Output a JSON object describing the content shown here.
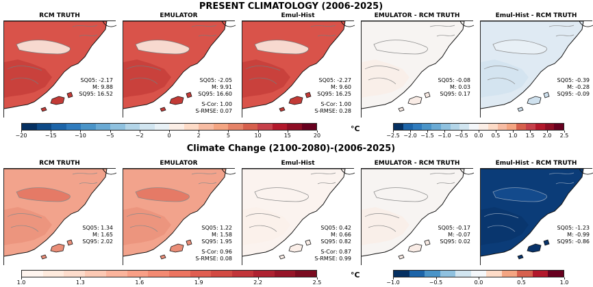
{
  "top": {
    "title": "PRESENT CLIMATOLOGY (2006-2025)",
    "panels": [
      {
        "title": "RCM TRUTH",
        "stats": [
          "SQ05: -2.17",
          "M: 9.88",
          "SQ95: 16.52"
        ],
        "extra": [],
        "fill": "warm"
      },
      {
        "title": "EMULATOR",
        "stats": [
          "SQ05: -2.05",
          "M: 9.91",
          "SQ95: 16.60"
        ],
        "extra": [
          "S-Cor: 1.00",
          "S-RMSE: 0.07"
        ],
        "fill": "warm"
      },
      {
        "title": "Emul-Hist",
        "stats": [
          "SQ05: -2.27",
          "M: 9.60",
          "SQ95: 16.25"
        ],
        "extra": [
          "S-Cor: 1.00",
          "S-RMSE: 0.28"
        ],
        "fill": "warm"
      },
      {
        "title": "EMULATOR - RCM TRUTH",
        "stats": [
          "SQ05: -0.08",
          "M: 0.03",
          "SQ95: 0.17"
        ],
        "extra": [],
        "fill": "white"
      },
      {
        "title": "Emul-Hist - RCM TRUTH",
        "stats": [
          "SQ05: -0.39",
          "M: -0.28",
          "SQ95: -0.09"
        ],
        "extra": [],
        "fill": "lightblue"
      }
    ],
    "cbar_left": {
      "ticks": [
        "−20",
        "−15",
        "−10",
        "−5",
        "−2",
        "0",
        "2",
        "5",
        "10",
        "15",
        "20"
      ],
      "colors": [
        "#053061",
        "#0d4a87",
        "#1c64a8",
        "#2f7bbd",
        "#4a94c8",
        "#6aaad4",
        "#8fc1df",
        "#b3d5e8",
        "#d1e5f0",
        "#e8f1f6",
        "#fbeee6",
        "#fddbc7",
        "#f7bca3",
        "#f4a582",
        "#e58368",
        "#d6604d",
        "#c6404a",
        "#b2182b",
        "#8e0d24",
        "#67001f"
      ]
    },
    "cbar_right": {
      "ticks": [
        "−2.5",
        "−2.0",
        "−1.5",
        "−1.0",
        "−0.5",
        "0.0",
        "0.5",
        "1.0",
        "1.5",
        "2.0",
        "2.5"
      ],
      "colors": [
        "#053061",
        "#1c64a8",
        "#2f7bbd",
        "#4a94c8",
        "#6aaad4",
        "#8fc1df",
        "#b3d5e8",
        "#d1e5f0",
        "#f4f7fa",
        "#fbeee6",
        "#fddbc7",
        "#f7bca3",
        "#f4a582",
        "#d6604d",
        "#c6404a",
        "#b2182b",
        "#8e0d24",
        "#67001f"
      ]
    },
    "unit": "°C"
  },
  "bottom": {
    "title": "Climate Change (2100-2080)-(2006-2025)",
    "panels": [
      {
        "title": "RCM TRUTH",
        "stats": [
          "SQ05: 1.34",
          "M: 1.65",
          "SQ95: 2.02"
        ],
        "extra": [],
        "fill": "salmon"
      },
      {
        "title": "EMULATOR",
        "stats": [
          "SQ05: 1.22",
          "M: 1.58",
          "SQ95: 1.95"
        ],
        "extra": [
          "S-Cor: 0.96",
          "S-RMSE: 0.08"
        ],
        "fill": "salmon"
      },
      {
        "title": "Emul-Hist",
        "stats": [
          "SQ05: 0.42",
          "M: 0.66",
          "SQ95: 0.82"
        ],
        "extra": [
          "S-Cor: 0.87",
          "S-RMSE: 0.99"
        ],
        "fill": "paleyellow"
      },
      {
        "title": "EMULATOR - RCM TRUTH",
        "stats": [
          "SQ05: -0.17",
          "M: -0.07",
          "SQ95: 0.02"
        ],
        "extra": [],
        "fill": "white"
      },
      {
        "title": "Emul-Hist - RCM TRUTH",
        "stats": [
          "SQ05: -1.23",
          "M: -0.99",
          "SQ95: -0.86"
        ],
        "extra": [],
        "fill": "navy"
      }
    ],
    "cbar_left": {
      "ticks": [
        "1.0",
        "1.3",
        "1.6",
        "1.9",
        "2.2",
        "2.5"
      ],
      "colors": [
        "#fff5ef",
        "#feeadd",
        "#fddccc",
        "#fcc9b4",
        "#fbb49c",
        "#f99f86",
        "#f38a72",
        "#ec7460",
        "#e05e51",
        "#d24a43",
        "#c2353a",
        "#ae2231",
        "#961528",
        "#7a0c20"
      ]
    },
    "cbar_right": {
      "ticks": [
        "−1.0",
        "−0.5",
        "0.0",
        "0.5",
        "1.0"
      ],
      "colors": [
        "#053061",
        "#1c64a8",
        "#4a94c8",
        "#8fc1df",
        "#d1e5f0",
        "#f4f7fa",
        "#fddbc7",
        "#f4a582",
        "#d6604d",
        "#b2182b",
        "#67001f"
      ]
    },
    "unit": "°C"
  }
}
